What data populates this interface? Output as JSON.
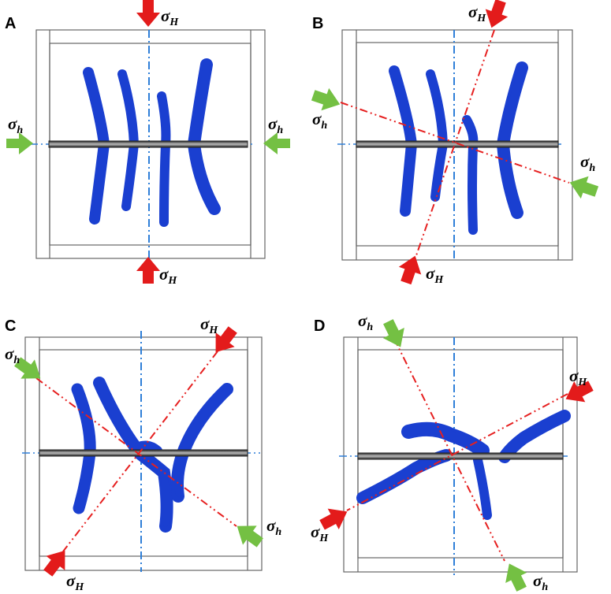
{
  "panels": [
    {
      "letter": "A",
      "sigma_H_labels": [
        {
          "base": "σ",
          "sub": "H"
        },
        {
          "base": "σ",
          "sub": "H"
        }
      ],
      "sigma_h_labels": [
        {
          "base": "σ",
          "sub": "h"
        },
        {
          "base": "σ",
          "sub": "h"
        }
      ],
      "arrow_colors": {
        "sigma_H": "#e31b1b",
        "sigma_h": "#74c043"
      }
    },
    {
      "letter": "B",
      "sigma_H_labels": [
        {
          "base": "σ",
          "sub": "H"
        },
        {
          "base": "σ",
          "sub": "H"
        }
      ],
      "sigma_h_labels": [
        {
          "base": "σ",
          "sub": "h"
        },
        {
          "base": "σ",
          "sub": "h"
        }
      ],
      "arrow_colors": {
        "sigma_H": "#e31b1b",
        "sigma_h": "#74c043"
      }
    },
    {
      "letter": "C",
      "sigma_H_labels": [
        {
          "base": "σ",
          "sub": "H"
        },
        {
          "base": "σ",
          "sub": "H"
        }
      ],
      "sigma_h_labels": [
        {
          "base": "σ",
          "sub": "h"
        },
        {
          "base": "σ",
          "sub": "h"
        }
      ],
      "arrow_colors": {
        "sigma_H": "#e31b1b",
        "sigma_h": "#74c043"
      }
    },
    {
      "letter": "D",
      "sigma_H_labels": [
        {
          "base": "σ",
          "sub": "H"
        },
        {
          "base": "σ",
          "sub": "H"
        }
      ],
      "sigma_h_labels": [
        {
          "base": "σ",
          "sub": "h"
        },
        {
          "base": "σ",
          "sub": "h"
        }
      ],
      "arrow_colors": {
        "sigma_H": "#e31b1b",
        "sigma_h": "#74c043"
      }
    }
  ]
}
